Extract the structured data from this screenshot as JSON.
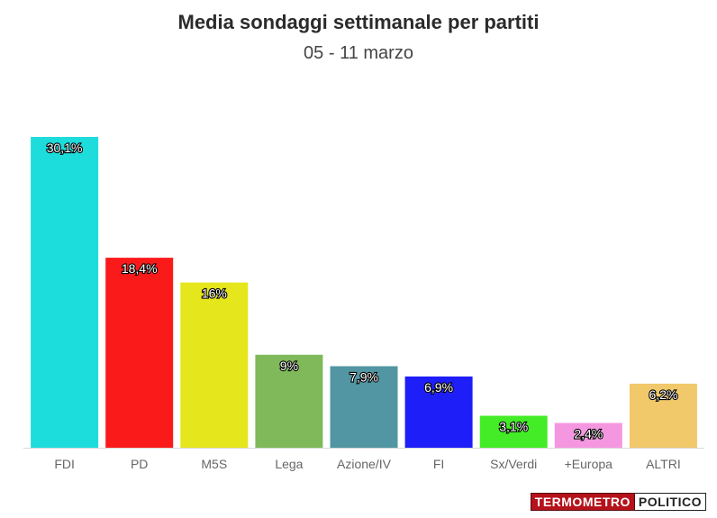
{
  "header": {
    "title": "Media sondaggi settimanale per partiti",
    "subtitle": "05 - 11 marzo"
  },
  "logo": {
    "part1": "TERMOMETRO",
    "part2": "POLITICO"
  },
  "chart_data": {
    "type": "bar",
    "title": "Media sondaggi settimanale per partiti",
    "subtitle": "05 - 11 marzo",
    "categories": [
      "FDI",
      "PD",
      "M5S",
      "Lega",
      "Azione/IV",
      "FI",
      "Sx/Verdi",
      "+Europa",
      "ALTRI"
    ],
    "values": [
      30.1,
      18.4,
      16,
      9,
      7.9,
      6.9,
      3.1,
      2.4,
      6.2
    ],
    "labels": [
      "30,1%",
      "18,4%",
      "16%",
      "9%",
      "7,9%",
      "6,9%",
      "3,1%",
      "2,4%",
      "6,2%"
    ],
    "colors": [
      "#1ddcdc",
      "#fb1a1a",
      "#e6e61c",
      "#7fb95a",
      "#5196a2",
      "#1e1ef8",
      "#43ec26",
      "#f597e0",
      "#f1c86a"
    ],
    "xlabel": "",
    "ylabel": "",
    "ylim": [
      0,
      30.1
    ],
    "grid": false,
    "legend": "none"
  }
}
